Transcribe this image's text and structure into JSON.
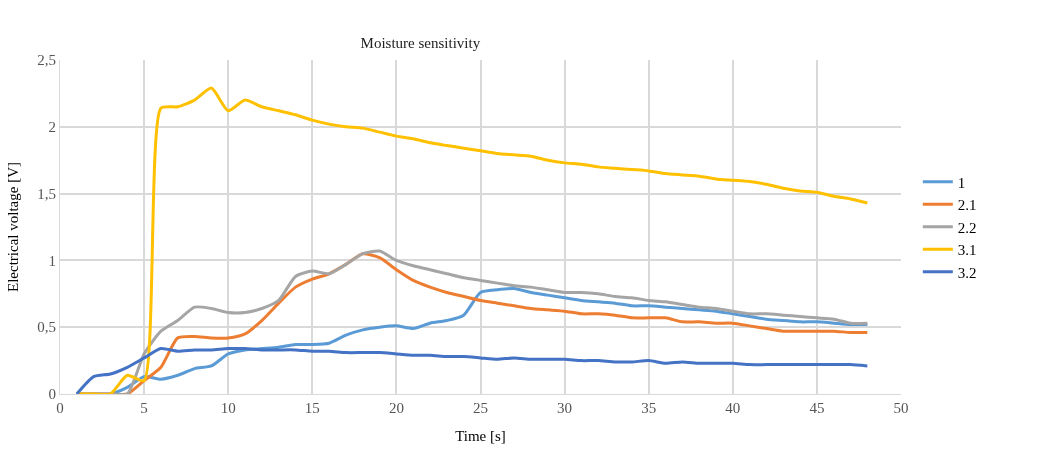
{
  "chart_data": {
    "type": "line",
    "title": "Moisture sensitivity",
    "xlabel": "Time [s]",
    "ylabel": "Electrical voltage [V]",
    "x": [
      1,
      2,
      3,
      4,
      5,
      6,
      7,
      8,
      9,
      10,
      11,
      12,
      13,
      14,
      15,
      16,
      17,
      18,
      19,
      20,
      21,
      22,
      23,
      24,
      25,
      26,
      27,
      28,
      29,
      30,
      31,
      32,
      33,
      34,
      35,
      36,
      37,
      38,
      39,
      40,
      41,
      42,
      43,
      44,
      45,
      46,
      47,
      48
    ],
    "series": [
      {
        "name": "1",
        "color": "#5b9bd5",
        "values": [
          0,
          0,
          0,
          0.05,
          0.13,
          0.11,
          0.14,
          0.19,
          0.21,
          0.3,
          0.33,
          0.34,
          0.35,
          0.37,
          0.37,
          0.38,
          0.44,
          0.48,
          0.5,
          0.51,
          0.49,
          0.53,
          0.55,
          0.59,
          0.76,
          0.78,
          0.79,
          0.76,
          0.74,
          0.72,
          0.7,
          0.69,
          0.68,
          0.66,
          0.66,
          0.65,
          0.64,
          0.63,
          0.62,
          0.6,
          0.58,
          0.56,
          0.55,
          0.54,
          0.54,
          0.53,
          0.52,
          0.52
        ]
      },
      {
        "name": "2.1",
        "color": "#ed7d31",
        "values": [
          0,
          0,
          0,
          0,
          0.1,
          0.2,
          0.42,
          0.43,
          0.42,
          0.42,
          0.45,
          0.55,
          0.68,
          0.8,
          0.86,
          0.9,
          0.97,
          1.05,
          1.02,
          0.93,
          0.85,
          0.8,
          0.76,
          0.73,
          0.7,
          0.68,
          0.66,
          0.64,
          0.63,
          0.62,
          0.6,
          0.6,
          0.59,
          0.57,
          0.57,
          0.57,
          0.54,
          0.54,
          0.53,
          0.53,
          0.51,
          0.49,
          0.47,
          0.47,
          0.47,
          0.47,
          0.46,
          0.46
        ]
      },
      {
        "name": "2.2",
        "color": "#a5a5a5",
        "values": [
          0,
          0,
          0,
          0,
          0.3,
          0.47,
          0.55,
          0.65,
          0.64,
          0.61,
          0.61,
          0.64,
          0.7,
          0.88,
          0.92,
          0.9,
          0.97,
          1.05,
          1.07,
          1.0,
          0.96,
          0.93,
          0.9,
          0.87,
          0.85,
          0.83,
          0.81,
          0.8,
          0.78,
          0.76,
          0.76,
          0.75,
          0.73,
          0.72,
          0.7,
          0.69,
          0.67,
          0.65,
          0.64,
          0.62,
          0.6,
          0.6,
          0.59,
          0.58,
          0.57,
          0.56,
          0.53,
          0.53
        ]
      },
      {
        "name": "3.1",
        "color": "#ffc000",
        "values": [
          0,
          0,
          0,
          0.14,
          0.1,
          2.14,
          2.15,
          2.2,
          2.29,
          2.12,
          2.2,
          2.15,
          2.12,
          2.09,
          2.05,
          2.02,
          2.0,
          1.99,
          1.96,
          1.93,
          1.91,
          1.88,
          1.86,
          1.84,
          1.82,
          1.8,
          1.79,
          1.78,
          1.75,
          1.73,
          1.72,
          1.7,
          1.69,
          1.68,
          1.67,
          1.65,
          1.64,
          1.63,
          1.61,
          1.6,
          1.59,
          1.57,
          1.54,
          1.52,
          1.51,
          1.48,
          1.46,
          1.43
        ]
      },
      {
        "name": "3.2",
        "color": "#4472c4",
        "values": [
          0,
          0.13,
          0.15,
          0.2,
          0.27,
          0.34,
          0.32,
          0.33,
          0.33,
          0.34,
          0.34,
          0.33,
          0.33,
          0.33,
          0.32,
          0.32,
          0.31,
          0.31,
          0.31,
          0.3,
          0.29,
          0.29,
          0.28,
          0.28,
          0.27,
          0.26,
          0.27,
          0.26,
          0.26,
          0.26,
          0.25,
          0.25,
          0.24,
          0.24,
          0.25,
          0.23,
          0.24,
          0.23,
          0.23,
          0.23,
          0.22,
          0.22,
          0.22,
          0.22,
          0.22,
          0.22,
          0.22,
          0.21
        ]
      }
    ],
    "xlim": [
      0,
      50
    ],
    "xticks": [
      0,
      5,
      10,
      15,
      20,
      25,
      30,
      35,
      40,
      45,
      50
    ],
    "ylim": [
      0,
      2.5
    ],
    "yticks": [
      0,
      {
        "value": 0.5,
        "label": "0,5"
      },
      1,
      {
        "value": 1.5,
        "label": "1,5"
      },
      2,
      {
        "value": 2.5,
        "label": "2,5"
      }
    ],
    "grid": true,
    "legend": "right",
    "line_style": "solid",
    "marker": "none"
  }
}
